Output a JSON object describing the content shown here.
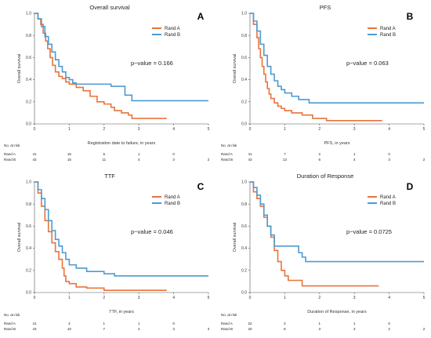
{
  "colors": {
    "rand_a": "#E8743B",
    "rand_b": "#4E9BD0"
  },
  "chart_data": [
    {
      "type": "line",
      "panel_label": "A",
      "title": "Overall survival",
      "xlabel": "Registration date to failure, in years",
      "ylabel": "Overall survival",
      "xlim": [
        0,
        5
      ],
      "ylim": [
        0,
        1
      ],
      "xticks": [
        "0",
        "1",
        "2",
        "3",
        "4",
        "5"
      ],
      "yticks": [
        "0.0",
        "0.2",
        "0.4",
        "0.6",
        "0.8",
        "1.0"
      ],
      "annotation": "p−value = 0.166",
      "legend_position": "top-right",
      "series": [
        {
          "name": "Rand A",
          "color": "#E8743B",
          "x": [
            0,
            0.1,
            0.18,
            0.25,
            0.32,
            0.38,
            0.45,
            0.52,
            0.6,
            0.7,
            0.8,
            0.9,
            1.0,
            1.2,
            1.4,
            1.6,
            1.8,
            2.0,
            2.2,
            2.3,
            2.5,
            2.7,
            2.8,
            3.8
          ],
          "y": [
            1.0,
            0.95,
            0.9,
            0.82,
            0.75,
            0.68,
            0.6,
            0.53,
            0.47,
            0.43,
            0.41,
            0.38,
            0.36,
            0.33,
            0.3,
            0.25,
            0.2,
            0.18,
            0.15,
            0.12,
            0.1,
            0.08,
            0.05,
            0.05
          ]
        },
        {
          "name": "Rand B",
          "color": "#4E9BD0",
          "x": [
            0,
            0.1,
            0.2,
            0.3,
            0.4,
            0.5,
            0.6,
            0.7,
            0.8,
            0.9,
            1.0,
            1.1,
            1.2,
            1.4,
            2.0,
            2.2,
            2.6,
            2.8,
            5.0
          ],
          "y": [
            1.0,
            0.95,
            0.88,
            0.79,
            0.72,
            0.65,
            0.58,
            0.52,
            0.47,
            0.42,
            0.4,
            0.37,
            0.36,
            0.36,
            0.36,
            0.34,
            0.26,
            0.21,
            0.21
          ]
        }
      ],
      "risk_table": {
        "header": "No. at risk",
        "rows": [
          {
            "label": "Rand A",
            "values": [
              "41",
              "16",
              "5",
              "1",
              "0"
            ]
          },
          {
            "label": "Rand B",
            "values": [
              "43",
              "15",
              "11",
              "4",
              "3",
              "2"
            ]
          }
        ]
      }
    },
    {
      "type": "line",
      "panel_label": "B",
      "title": "PFS",
      "xlabel": "PFS, in years",
      "ylabel": "Overall survival",
      "xlim": [
        0,
        5
      ],
      "ylim": [
        0,
        1
      ],
      "xticks": [
        "0",
        "1",
        "2",
        "3",
        "4",
        "5"
      ],
      "yticks": [
        "0.0",
        "0.2",
        "0.4",
        "0.6",
        "0.8",
        "1.0"
      ],
      "annotation": "p−value = 0.063",
      "legend_position": "top-right",
      "series": [
        {
          "name": "Rand A",
          "color": "#E8743B",
          "x": [
            0,
            0.1,
            0.2,
            0.25,
            0.3,
            0.35,
            0.4,
            0.45,
            0.5,
            0.55,
            0.6,
            0.7,
            0.8,
            0.9,
            1.0,
            1.2,
            1.5,
            1.8,
            2.2,
            3.8
          ],
          "y": [
            1.0,
            0.9,
            0.78,
            0.68,
            0.6,
            0.52,
            0.45,
            0.38,
            0.32,
            0.27,
            0.23,
            0.19,
            0.16,
            0.14,
            0.12,
            0.1,
            0.08,
            0.05,
            0.03,
            0.03
          ]
        },
        {
          "name": "Rand B",
          "color": "#4E9BD0",
          "x": [
            0,
            0.1,
            0.2,
            0.3,
            0.4,
            0.5,
            0.6,
            0.7,
            0.8,
            0.9,
            1.0,
            1.2,
            1.4,
            1.7,
            5.0
          ],
          "y": [
            1.0,
            0.93,
            0.84,
            0.72,
            0.62,
            0.52,
            0.45,
            0.39,
            0.34,
            0.31,
            0.28,
            0.25,
            0.22,
            0.19,
            0.19
          ]
        }
      ],
      "risk_table": {
        "header": "No. at risk",
        "rows": [
          {
            "label": "Rand A",
            "values": [
              "41",
              "7",
              "2",
              "1",
              "0"
            ]
          },
          {
            "label": "Rand B",
            "values": [
              "43",
              "13",
              "6",
              "4",
              "3",
              "2"
            ]
          }
        ]
      }
    },
    {
      "type": "line",
      "panel_label": "C",
      "title": "TTF",
      "xlabel": "TTF, in years",
      "ylabel": "Overall survival",
      "xlim": [
        0,
        5
      ],
      "ylim": [
        0,
        1
      ],
      "xticks": [
        "0",
        "1",
        "2",
        "3",
        "4",
        "5"
      ],
      "yticks": [
        "0.0",
        "0.2",
        "0.4",
        "0.6",
        "0.8",
        "1.0"
      ],
      "annotation": "p−value = 0.046",
      "legend_position": "top-right",
      "series": [
        {
          "name": "Rand A",
          "color": "#E8743B",
          "x": [
            0,
            0.1,
            0.2,
            0.3,
            0.4,
            0.5,
            0.6,
            0.7,
            0.8,
            0.85,
            0.9,
            1.0,
            1.2,
            1.5,
            2.0,
            3.8
          ],
          "y": [
            1.0,
            0.9,
            0.78,
            0.65,
            0.55,
            0.45,
            0.37,
            0.3,
            0.22,
            0.15,
            0.1,
            0.08,
            0.05,
            0.04,
            0.02,
            0.02
          ]
        },
        {
          "name": "Rand B",
          "color": "#4E9BD0",
          "x": [
            0,
            0.1,
            0.2,
            0.3,
            0.4,
            0.5,
            0.6,
            0.7,
            0.8,
            0.9,
            1.0,
            1.2,
            1.5,
            2.0,
            2.3,
            5.0
          ],
          "y": [
            1.0,
            0.93,
            0.85,
            0.75,
            0.65,
            0.56,
            0.48,
            0.42,
            0.36,
            0.3,
            0.25,
            0.22,
            0.19,
            0.17,
            0.15,
            0.15
          ]
        }
      ],
      "risk_table": {
        "header": "No. at risk",
        "rows": [
          {
            "label": "Rand A",
            "values": [
              "41",
              "4",
              "1",
              "1",
              "0"
            ]
          },
          {
            "label": "Rand B",
            "values": [
              "43",
              "10",
              "7",
              "4",
              "3",
              "3"
            ]
          }
        ]
      }
    },
    {
      "type": "line",
      "panel_label": "D",
      "title": "Duration of Response",
      "xlabel": "Duration of Response, in years",
      "ylabel": "Overall survival",
      "xlim": [
        0,
        5
      ],
      "ylim": [
        0,
        1
      ],
      "xticks": [
        "0",
        "1",
        "2",
        "3",
        "4",
        "5"
      ],
      "yticks": [
        "0.0",
        "0.2",
        "0.4",
        "0.6",
        "0.8",
        "1.0"
      ],
      "annotation": "p−value = 0.0725",
      "legend_position": "top-right",
      "series": [
        {
          "name": "Rand A",
          "color": "#E8743B",
          "x": [
            0,
            0.1,
            0.2,
            0.3,
            0.4,
            0.5,
            0.6,
            0.7,
            0.8,
            0.9,
            1.0,
            1.1,
            1.5,
            3.7
          ],
          "y": [
            1.0,
            0.91,
            0.85,
            0.78,
            0.68,
            0.6,
            0.5,
            0.38,
            0.28,
            0.2,
            0.15,
            0.11,
            0.06,
            0.06
          ]
        },
        {
          "name": "Rand B",
          "color": "#4E9BD0",
          "x": [
            0,
            0.1,
            0.2,
            0.3,
            0.4,
            0.5,
            0.6,
            0.7,
            1.0,
            1.2,
            1.4,
            1.5,
            1.6,
            5.0
          ],
          "y": [
            1.0,
            0.95,
            0.88,
            0.8,
            0.7,
            0.6,
            0.52,
            0.42,
            0.42,
            0.42,
            0.36,
            0.32,
            0.28,
            0.28
          ]
        }
      ],
      "risk_table": {
        "header": "No. at risk",
        "rows": [
          {
            "label": "Rand A",
            "values": [
              "22",
              "2",
              "1",
              "1",
              "0"
            ]
          },
          {
            "label": "Rand B",
            "values": [
              "20",
              "8",
              "3",
              "3",
              "2",
              "2"
            ]
          }
        ]
      }
    }
  ]
}
